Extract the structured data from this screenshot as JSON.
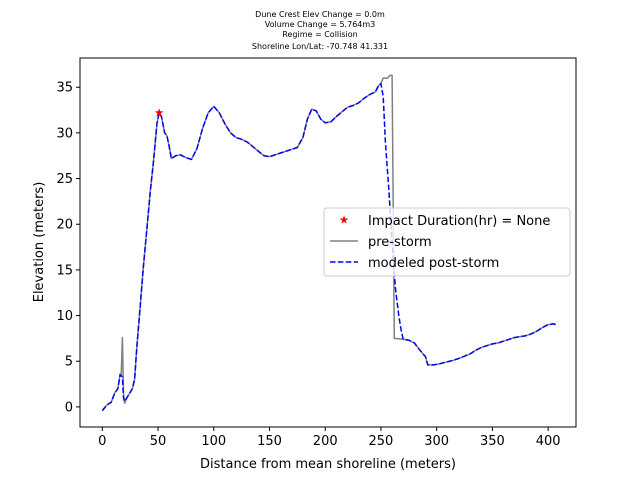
{
  "chart_data": {
    "type": "line",
    "title_lines": [
      "Dune Crest Elev Change = 0.0m",
      "Volume Change = 5.764m3",
      "Regime = Collision",
      "Shoreline Lon/Lat: -70.748 41.331"
    ],
    "xlabel": "Distance from mean shoreline (meters)",
    "ylabel": "Elevation (meters)",
    "xlim": [
      -20,
      425
    ],
    "ylim": [
      -2.2,
      38.2
    ],
    "xticks": [
      0,
      50,
      100,
      150,
      200,
      250,
      300,
      350,
      400
    ],
    "yticks": [
      0,
      5,
      10,
      15,
      20,
      25,
      30,
      35
    ],
    "grid": false,
    "legend_position": "center-right",
    "legend": [
      {
        "label": "Impact Duration(hr) = None",
        "marker": "star",
        "color": "#ff0000"
      },
      {
        "label": "pre-storm",
        "style": "solid",
        "color": "#808080"
      },
      {
        "label": "modeled post-storm",
        "style": "dashed",
        "color": "#0000ff"
      }
    ],
    "marker_point": {
      "x": 51,
      "y": 32.2
    },
    "series": [
      {
        "name": "pre-storm",
        "color": "#808080",
        "style": "solid",
        "points": [
          [
            0,
            -0.4
          ],
          [
            4,
            0.2
          ],
          [
            8,
            0.5
          ],
          [
            11,
            1.5
          ],
          [
            14,
            2.0
          ],
          [
            16,
            3.6
          ],
          [
            17,
            3.5
          ],
          [
            18,
            7.6
          ],
          [
            19,
            1.5
          ],
          [
            20,
            0.4
          ],
          [
            22,
            1.0
          ],
          [
            25,
            1.6
          ],
          [
            27,
            2.0
          ],
          [
            29,
            3.0
          ],
          [
            31,
            6.5
          ],
          [
            34,
            11.0
          ],
          [
            37,
            15.5
          ],
          [
            40,
            19.5
          ],
          [
            43,
            23.5
          ],
          [
            46,
            27.0
          ],
          [
            49,
            31.0
          ],
          [
            51,
            32.2
          ],
          [
            53,
            31.8
          ],
          [
            56,
            30.0
          ],
          [
            58,
            29.7
          ],
          [
            60,
            28.5
          ],
          [
            62,
            27.2
          ],
          [
            66,
            27.5
          ],
          [
            70,
            27.6
          ],
          [
            75,
            27.3
          ],
          [
            80,
            27.1
          ],
          [
            85,
            28.3
          ],
          [
            90,
            30.5
          ],
          [
            95,
            32.2
          ],
          [
            100,
            32.9
          ],
          [
            105,
            32.2
          ],
          [
            110,
            31.0
          ],
          [
            115,
            30.0
          ],
          [
            120,
            29.5
          ],
          [
            125,
            29.3
          ],
          [
            130,
            29.0
          ],
          [
            135,
            28.5
          ],
          [
            140,
            28.0
          ],
          [
            145,
            27.5
          ],
          [
            150,
            27.4
          ],
          [
            155,
            27.6
          ],
          [
            160,
            27.8
          ],
          [
            165,
            28.0
          ],
          [
            170,
            28.2
          ],
          [
            175,
            28.4
          ],
          [
            180,
            29.5
          ],
          [
            184,
            31.5
          ],
          [
            188,
            32.6
          ],
          [
            192,
            32.4
          ],
          [
            196,
            31.5
          ],
          [
            200,
            31.1
          ],
          [
            205,
            31.2
          ],
          [
            210,
            31.8
          ],
          [
            215,
            32.3
          ],
          [
            220,
            32.8
          ],
          [
            225,
            33.0
          ],
          [
            230,
            33.3
          ],
          [
            235,
            33.8
          ],
          [
            240,
            34.2
          ],
          [
            245,
            34.5
          ],
          [
            248,
            35.2
          ],
          [
            250,
            35.4
          ],
          [
            252,
            36.0
          ],
          [
            256,
            36.0
          ],
          [
            258,
            36.3
          ],
          [
            260,
            36.3
          ],
          [
            262,
            7.5
          ],
          [
            270,
            7.4
          ],
          [
            275,
            7.3
          ],
          [
            280,
            7.0
          ],
          [
            285,
            6.2
          ],
          [
            290,
            5.5
          ],
          [
            292,
            4.6
          ],
          [
            297,
            4.6
          ],
          [
            302,
            4.7
          ],
          [
            308,
            4.9
          ],
          [
            315,
            5.1
          ],
          [
            322,
            5.4
          ],
          [
            330,
            5.8
          ],
          [
            335,
            6.2
          ],
          [
            340,
            6.5
          ],
          [
            345,
            6.7
          ],
          [
            350,
            6.9
          ],
          [
            355,
            7.0
          ],
          [
            360,
            7.2
          ],
          [
            365,
            7.4
          ],
          [
            370,
            7.6
          ],
          [
            375,
            7.7
          ],
          [
            380,
            7.8
          ],
          [
            385,
            8.0
          ],
          [
            390,
            8.3
          ],
          [
            395,
            8.7
          ],
          [
            400,
            9.0
          ],
          [
            405,
            9.1
          ],
          [
            407,
            9.0
          ]
        ]
      },
      {
        "name": "modeled post-storm",
        "color": "#0000ff",
        "style": "dashed",
        "points": [
          [
            0,
            -0.4
          ],
          [
            4,
            0.2
          ],
          [
            8,
            0.5
          ],
          [
            11,
            1.5
          ],
          [
            14,
            2.0
          ],
          [
            16,
            3.5
          ],
          [
            18,
            3.3
          ],
          [
            19,
            1.0
          ],
          [
            20,
            0.6
          ],
          [
            22,
            1.0
          ],
          [
            25,
            1.6
          ],
          [
            27,
            2.0
          ],
          [
            29,
            3.0
          ],
          [
            31,
            6.5
          ],
          [
            34,
            11.0
          ],
          [
            37,
            15.5
          ],
          [
            40,
            19.5
          ],
          [
            43,
            23.5
          ],
          [
            46,
            27.0
          ],
          [
            49,
            31.0
          ],
          [
            51,
            32.2
          ],
          [
            53,
            31.8
          ],
          [
            56,
            30.0
          ],
          [
            58,
            29.7
          ],
          [
            60,
            28.5
          ],
          [
            62,
            27.2
          ],
          [
            66,
            27.5
          ],
          [
            70,
            27.6
          ],
          [
            75,
            27.3
          ],
          [
            80,
            27.1
          ],
          [
            85,
            28.3
          ],
          [
            90,
            30.5
          ],
          [
            95,
            32.2
          ],
          [
            100,
            32.9
          ],
          [
            105,
            32.2
          ],
          [
            110,
            31.0
          ],
          [
            115,
            30.0
          ],
          [
            120,
            29.5
          ],
          [
            125,
            29.3
          ],
          [
            130,
            29.0
          ],
          [
            135,
            28.5
          ],
          [
            140,
            28.0
          ],
          [
            145,
            27.5
          ],
          [
            150,
            27.4
          ],
          [
            155,
            27.6
          ],
          [
            160,
            27.8
          ],
          [
            165,
            28.0
          ],
          [
            170,
            28.2
          ],
          [
            175,
            28.4
          ],
          [
            180,
            29.5
          ],
          [
            184,
            31.5
          ],
          [
            188,
            32.6
          ],
          [
            192,
            32.4
          ],
          [
            196,
            31.5
          ],
          [
            200,
            31.1
          ],
          [
            205,
            31.2
          ],
          [
            210,
            31.8
          ],
          [
            215,
            32.3
          ],
          [
            220,
            32.8
          ],
          [
            225,
            33.0
          ],
          [
            230,
            33.3
          ],
          [
            235,
            33.8
          ],
          [
            240,
            34.2
          ],
          [
            245,
            34.5
          ],
          [
            248,
            35.2
          ],
          [
            250,
            35.4
          ],
          [
            252,
            34.0
          ],
          [
            254,
            29.0
          ],
          [
            257,
            24.0
          ],
          [
            260,
            18.0
          ],
          [
            263,
            13.0
          ],
          [
            266,
            10.0
          ],
          [
            268,
            8.5
          ],
          [
            270,
            7.4
          ],
          [
            275,
            7.3
          ],
          [
            280,
            7.0
          ],
          [
            285,
            6.2
          ],
          [
            290,
            5.5
          ],
          [
            292,
            4.6
          ],
          [
            297,
            4.6
          ],
          [
            302,
            4.7
          ],
          [
            308,
            4.9
          ],
          [
            315,
            5.1
          ],
          [
            322,
            5.4
          ],
          [
            330,
            5.8
          ],
          [
            335,
            6.2
          ],
          [
            340,
            6.5
          ],
          [
            345,
            6.7
          ],
          [
            350,
            6.9
          ],
          [
            355,
            7.0
          ],
          [
            360,
            7.2
          ],
          [
            365,
            7.4
          ],
          [
            370,
            7.6
          ],
          [
            375,
            7.7
          ],
          [
            380,
            7.8
          ],
          [
            385,
            8.0
          ],
          [
            390,
            8.3
          ],
          [
            395,
            8.7
          ],
          [
            400,
            9.0
          ],
          [
            405,
            9.1
          ],
          [
            407,
            9.0
          ]
        ]
      }
    ]
  }
}
